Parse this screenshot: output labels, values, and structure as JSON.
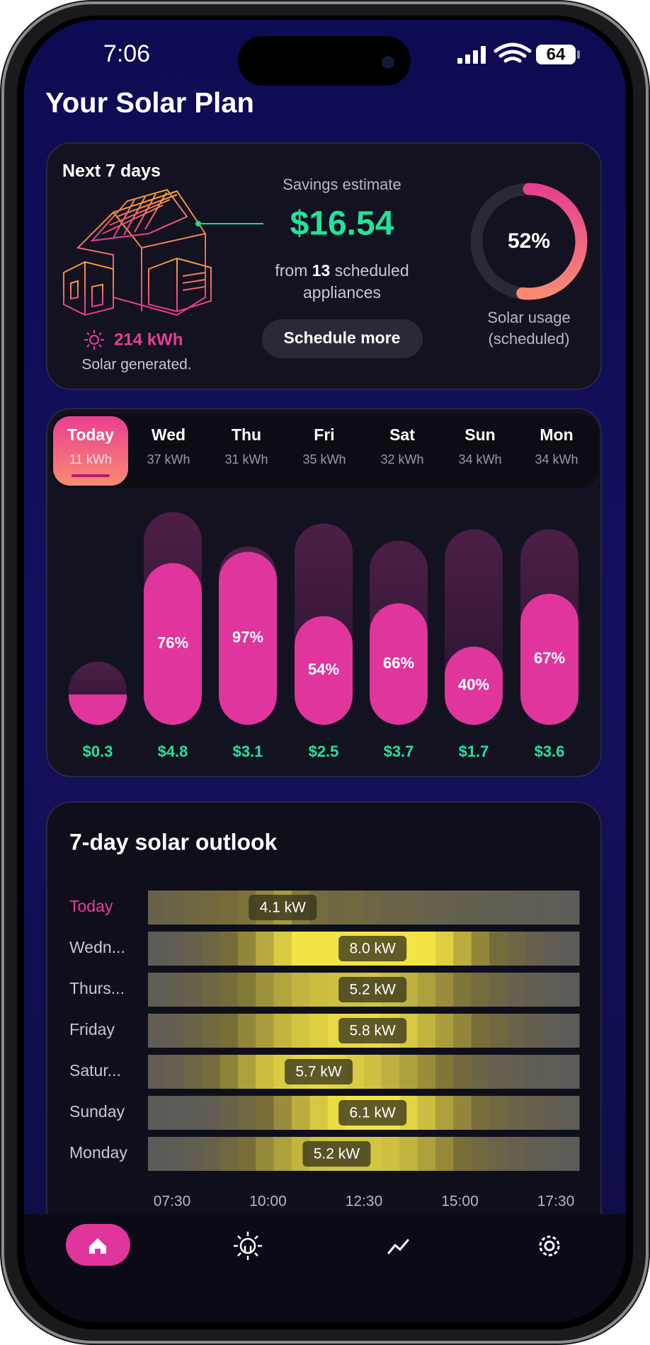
{
  "status_bar": {
    "time": "7:06",
    "battery": "64"
  },
  "header": {
    "title": "Your Solar Plan"
  },
  "summary": {
    "heading": "Next 7 days",
    "solar_generated": "214 kWh",
    "solar_generated_label": "Solar generated.",
    "savings_label": "Savings estimate",
    "savings_value": "$16.54",
    "appliances_prefix": "from",
    "appliance_count": "13",
    "appliances_suffix": "scheduled",
    "appliances_line2": "appliances",
    "button": "Schedule more",
    "solar_usage": {
      "value": 52,
      "label": "52%"
    },
    "solar_usage_label": [
      "Solar usage",
      "(scheduled)"
    ]
  },
  "days": [
    {
      "name": "Today",
      "kwh": 11,
      "kwh_label": "11 kWh",
      "solar_percent": 48,
      "cost": "$0.3"
    },
    {
      "name": "Wed",
      "kwh": 37,
      "kwh_label": "37 kWh",
      "solar_percent": 76,
      "percent_label": "76%",
      "cost": "$4.8"
    },
    {
      "name": "Thu",
      "kwh": 31,
      "kwh_label": "31 kWh",
      "solar_percent": 97,
      "percent_label": "97%",
      "cost": "$3.1"
    },
    {
      "name": "Fri",
      "kwh": 35,
      "kwh_label": "35 kWh",
      "solar_percent": 54,
      "percent_label": "54%",
      "cost": "$2.5"
    },
    {
      "name": "Sat",
      "kwh": 32,
      "kwh_label": "32 kWh",
      "solar_percent": 66,
      "percent_label": "66%",
      "cost": "$3.7"
    },
    {
      "name": "Sun",
      "kwh": 34,
      "kwh_label": "34 kWh",
      "solar_percent": 40,
      "percent_label": "40%",
      "cost": "$1.7"
    },
    {
      "name": "Mon",
      "kwh": 34,
      "kwh_label": "34 kWh",
      "solar_percent": 67,
      "percent_label": "67%",
      "cost": "$3.6"
    }
  ],
  "outlook": {
    "title": "7-day solar outlook",
    "time_ticks": [
      "07:30",
      "10:00",
      "12:30",
      "15:00",
      "17:30"
    ],
    "rows": [
      {
        "label": "Today",
        "peak_label": "4.1 kW",
        "kw": [
          1.6,
          1.9,
          2.2,
          2.5,
          2.8,
          3.1,
          3.6,
          4.1,
          3.3,
          2.6,
          2.2,
          2.4,
          2.0,
          1.7,
          1.9,
          1.5,
          1.4,
          1.3,
          1.2,
          1.1,
          1.0,
          0.9,
          0.9,
          0.8
        ]
      },
      {
        "label": "Wedn...",
        "peak_label": "8.0 kW",
        "kw": [
          0.8,
          1.0,
          1.4,
          2.0,
          2.8,
          3.6,
          4.5,
          5.4,
          6.2,
          6.9,
          7.4,
          7.8,
          8.0,
          7.7,
          7.1,
          6.4,
          5.5,
          4.6,
          3.6,
          2.7,
          2.0,
          1.4,
          1.0,
          0.8
        ]
      },
      {
        "label": "Thurs...",
        "peak_label": "5.2 kW",
        "kw": [
          0.9,
          1.2,
          1.6,
          2.1,
          2.7,
          3.3,
          3.9,
          4.4,
          4.8,
          5.0,
          5.1,
          5.1,
          5.2,
          5.0,
          4.7,
          4.3,
          3.8,
          3.2,
          2.6,
          2.0,
          1.5,
          1.1,
          0.9,
          0.7
        ]
      },
      {
        "label": "Friday",
        "peak_label": "5.8 kW",
        "kw": [
          1.0,
          1.3,
          1.8,
          2.4,
          3.0,
          3.6,
          4.2,
          4.8,
          5.2,
          5.5,
          5.7,
          5.7,
          5.8,
          5.6,
          5.3,
          4.8,
          4.2,
          3.6,
          2.9,
          2.3,
          1.7,
          1.2,
          0.9,
          0.7
        ]
      },
      {
        "label": "Satur...",
        "peak_label": "5.7 kW",
        "kw": [
          1.0,
          1.4,
          2.0,
          2.7,
          3.5,
          4.3,
          5.0,
          5.4,
          5.6,
          5.7,
          5.6,
          5.4,
          5.1,
          4.7,
          4.3,
          3.8,
          3.2,
          2.5,
          1.9,
          1.4,
          1.2,
          1.0,
          0.9,
          0.8
        ]
      },
      {
        "label": "Sunday",
        "peak_label": "6.1 kW",
        "kw": [
          0.6,
          0.7,
          0.8,
          1.0,
          1.6,
          2.3,
          3.0,
          3.8,
          4.6,
          5.3,
          5.8,
          6.0,
          6.1,
          6.0,
          5.6,
          5.0,
          4.3,
          3.6,
          2.9,
          2.3,
          1.8,
          1.4,
          1.1,
          0.9
        ]
      },
      {
        "label": "Monday",
        "peak_label": "5.2 kW",
        "kw": [
          0.6,
          0.8,
          1.1,
          1.6,
          2.3,
          3.0,
          3.7,
          4.3,
          4.8,
          5.1,
          5.2,
          5.2,
          5.2,
          5.1,
          4.8,
          4.3,
          3.7,
          3.0,
          2.4,
          1.8,
          1.4,
          1.1,
          0.9,
          0.8
        ]
      }
    ]
  }
}
